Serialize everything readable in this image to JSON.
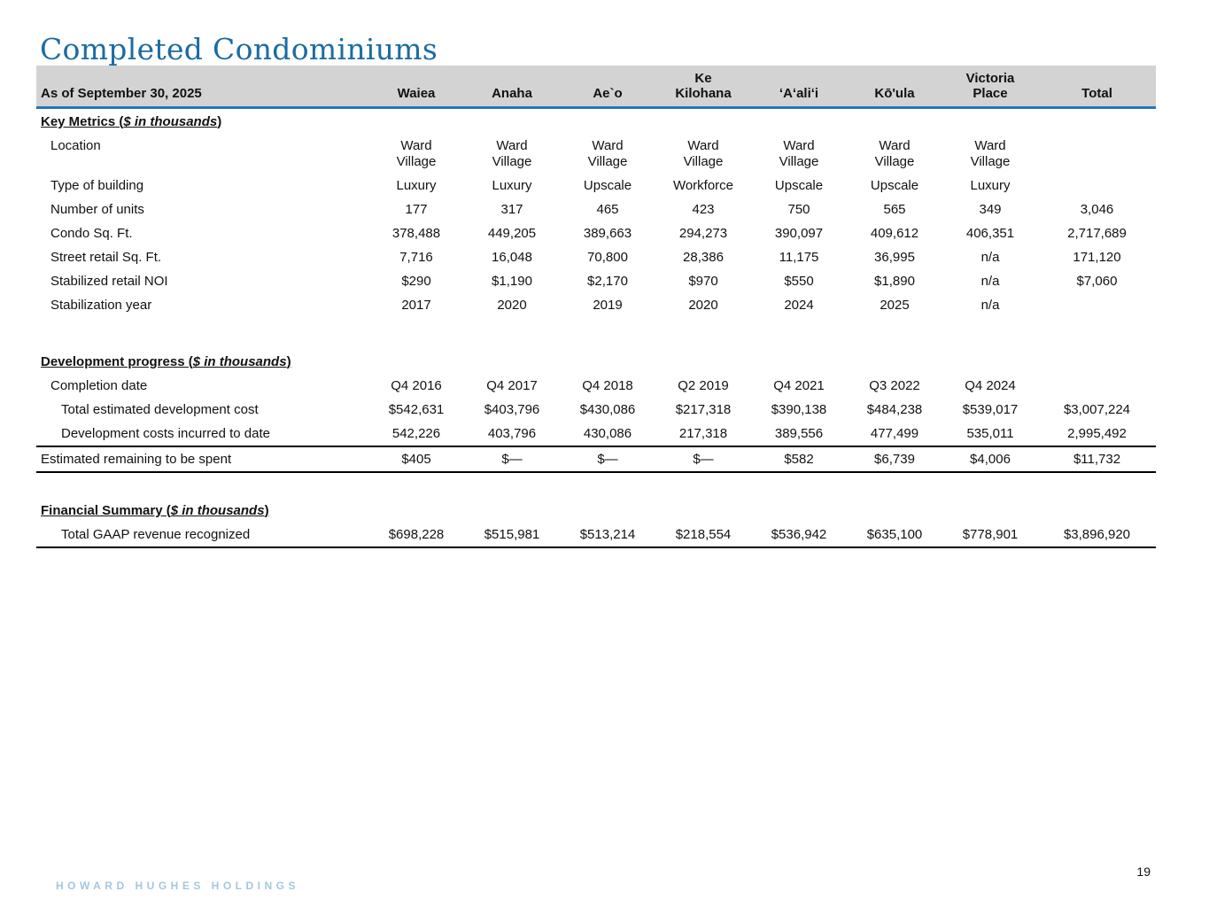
{
  "slide": {
    "title": "Completed Condominiums",
    "page_number": "19",
    "footer_logo_text": "HOWARD HUGHES HOLDINGS"
  },
  "colors": {
    "title_blue": "#1b6ca3",
    "header_rule_blue": "#1d78b5",
    "header_gray": "#d3d3d3",
    "footer_logo_blue": "#a4c7dc",
    "text_black": "#111111"
  },
  "table": {
    "header": {
      "label": "As of September 30, 2025",
      "columns": [
        "Waiea",
        "Anaha",
        "Ae`o",
        "Ke\nKilohana",
        "ʻAʻaliʻi",
        "Kō'ula",
        "Victoria\nPlace",
        "Total"
      ]
    },
    "sections": [
      {
        "heading": {
          "prefix": "Key Metrics (",
          "italic": "$ in thousands",
          "suffix": ")"
        },
        "rows": [
          {
            "label": "Location",
            "indent": 1,
            "values": [
              "Ward\nVillage",
              "Ward\nVillage",
              "Ward\nVillage",
              "Ward\nVillage",
              "Ward\nVillage",
              "Ward\nVillage",
              "Ward\nVillage",
              ""
            ]
          },
          {
            "label": "Type of building",
            "indent": 1,
            "values": [
              "Luxury",
              "Luxury",
              "Upscale",
              "Workforce",
              "Upscale",
              "Upscale",
              "Luxury",
              ""
            ]
          },
          {
            "label": "Number of units",
            "indent": 1,
            "values": [
              "177",
              "317",
              "465",
              "423",
              "750",
              "565",
              "349",
              "3,046"
            ]
          },
          {
            "label": "Condo Sq. Ft.",
            "indent": 1,
            "values": [
              "378,488",
              "449,205",
              "389,663",
              "294,273",
              "390,097",
              "409,612",
              "406,351",
              "2,717,689"
            ]
          },
          {
            "label": "Street retail Sq. Ft.",
            "indent": 1,
            "values": [
              "7,716",
              "16,048",
              "70,800",
              "28,386",
              "11,175",
              "36,995",
              "n/a",
              "171,120"
            ]
          },
          {
            "label": "Stabilized retail NOI",
            "indent": 1,
            "values": [
              "$290",
              "$1,190",
              "$2,170",
              "$970",
              "$550",
              "$1,890",
              "n/a",
              "$7,060"
            ]
          },
          {
            "label": "Stabilization year",
            "indent": 1,
            "values": [
              "2017",
              "2020",
              "2019",
              "2020",
              "2024",
              "2025",
              "n/a",
              ""
            ]
          }
        ]
      },
      {
        "heading": {
          "prefix": "Development progress (",
          "italic": "$ in thousands",
          "suffix": ")"
        },
        "rows": [
          {
            "label": "Completion date",
            "indent": 1,
            "values": [
              "Q4 2016",
              "Q4 2017",
              "Q4 2018",
              "Q2 2019",
              "Q4 2021",
              "Q3 2022",
              "Q4 2024",
              ""
            ]
          },
          {
            "label": "Total estimated development cost",
            "indent": 2,
            "values": [
              "$542,631",
              "$403,796",
              "$430,086",
              "$217,318",
              "$390,138",
              "$484,238",
              "$539,017",
              "$3,007,224"
            ]
          },
          {
            "label": "Development costs incurred to date",
            "indent": 2,
            "values": [
              "542,226",
              "403,796",
              "430,086",
              "217,318",
              "389,556",
              "477,499",
              "535,011",
              "2,995,492"
            ]
          },
          {
            "label": "Estimated remaining to be spent",
            "indent": 0,
            "border_top": true,
            "border_bottom": true,
            "values": [
              "$405",
              "$—",
              "$—",
              "$—",
              "$582",
              "$6,739",
              "$4,006",
              "$11,732"
            ]
          }
        ]
      },
      {
        "heading": {
          "prefix": "Financial Summary (",
          "italic": "$ in thousands",
          "suffix": ")"
        },
        "rows": [
          {
            "label": "Total GAAP revenue recognized",
            "indent": 2,
            "border_bottom": true,
            "values": [
              "$698,228",
              "$515,981",
              "$513,214",
              "$218,554",
              "$536,942",
              "$635,100",
              "$778,901",
              "$3,896,920"
            ]
          }
        ]
      }
    ]
  }
}
